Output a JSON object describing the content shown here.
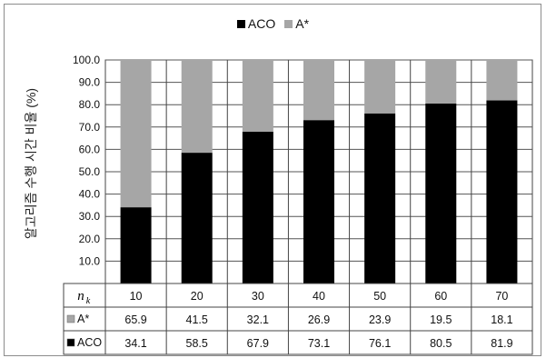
{
  "chart_data": {
    "type": "bar",
    "stacked": true,
    "percent_stacked": true,
    "categories": [
      "10",
      "20",
      "30",
      "40",
      "50",
      "60",
      "70"
    ],
    "series": [
      {
        "name": "ACO",
        "values": [
          34.1,
          58.5,
          67.9,
          73.1,
          76.1,
          80.5,
          81.9
        ],
        "color": "#000000"
      },
      {
        "name": "A*",
        "values": [
          65.9,
          41.5,
          32.1,
          26.9,
          23.9,
          19.5,
          18.1
        ],
        "color": "#a6a6a6"
      }
    ],
    "ylabel": "알고리즘 수행 시간 비율 (%)",
    "ylim": [
      0,
      100
    ],
    "yticks": [
      "10.0",
      "20.0",
      "30.0",
      "40.0",
      "50.0",
      "60.0",
      "70.0",
      "80.0",
      "90.0",
      "100.0"
    ],
    "grid": true,
    "legend_position": "top-center",
    "data_table": {
      "header_label": "n_k",
      "rows": [
        {
          "series": "A*",
          "values": [
            "65.9",
            "41.5",
            "32.1",
            "26.9",
            "23.9",
            "19.5",
            "18.1"
          ]
        },
        {
          "series": "ACO",
          "values": [
            "34.1",
            "58.5",
            "67.9",
            "73.1",
            "76.1",
            "80.5",
            "81.9"
          ]
        }
      ]
    }
  },
  "legend": [
    {
      "label": "ACO",
      "color": "#000000"
    },
    {
      "label": "A*",
      "color": "#a6a6a6"
    }
  ]
}
